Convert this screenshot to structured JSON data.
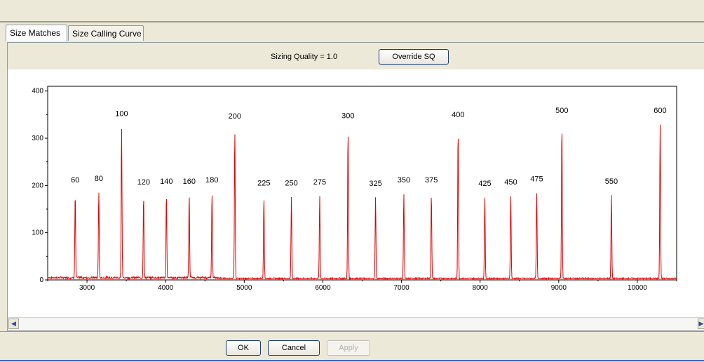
{
  "tabs": [
    {
      "label": "Size Matches",
      "active": true
    },
    {
      "label": "Size Calling Curve",
      "active": false
    }
  ],
  "sizing": {
    "quality_label": "Sizing Quality = 1.0",
    "override_label": "Override SQ"
  },
  "buttons": {
    "ok": "OK",
    "cancel": "Cancel",
    "apply": "Apply"
  },
  "chart_data": {
    "type": "line",
    "color": "#e00000",
    "xlim": [
      2500,
      10500
    ],
    "ylim": [
      0,
      410
    ],
    "xticks": [
      3000,
      4000,
      5000,
      6000,
      7000,
      8000,
      9000,
      10000
    ],
    "yticks": [
      0,
      100,
      200,
      300,
      400
    ],
    "peaks": [
      {
        "x": 2850,
        "y": 180,
        "label": "60"
      },
      {
        "x": 3150,
        "y": 183,
        "label": "80"
      },
      {
        "x": 3440,
        "y": 320,
        "label": "100"
      },
      {
        "x": 3720,
        "y": 175,
        "label": "120"
      },
      {
        "x": 4010,
        "y": 177,
        "label": "140"
      },
      {
        "x": 4300,
        "y": 177,
        "label": "160"
      },
      {
        "x": 4590,
        "y": 180,
        "label": "180"
      },
      {
        "x": 4880,
        "y": 315,
        "label": "200"
      },
      {
        "x": 5250,
        "y": 173,
        "label": "225"
      },
      {
        "x": 5600,
        "y": 173,
        "label": "250"
      },
      {
        "x": 5960,
        "y": 175,
        "label": "275"
      },
      {
        "x": 6320,
        "y": 316,
        "label": "300"
      },
      {
        "x": 6670,
        "y": 172,
        "label": "325"
      },
      {
        "x": 7030,
        "y": 180,
        "label": "350"
      },
      {
        "x": 7380,
        "y": 180,
        "label": "375"
      },
      {
        "x": 7720,
        "y": 318,
        "label": "400"
      },
      {
        "x": 8060,
        "y": 172,
        "label": "425"
      },
      {
        "x": 8390,
        "y": 175,
        "label": "450"
      },
      {
        "x": 8720,
        "y": 182,
        "label": "475"
      },
      {
        "x": 9040,
        "y": 327,
        "label": "500"
      },
      {
        "x": 9670,
        "y": 177,
        "label": "550"
      },
      {
        "x": 10290,
        "y": 327,
        "label": "600"
      }
    ]
  }
}
